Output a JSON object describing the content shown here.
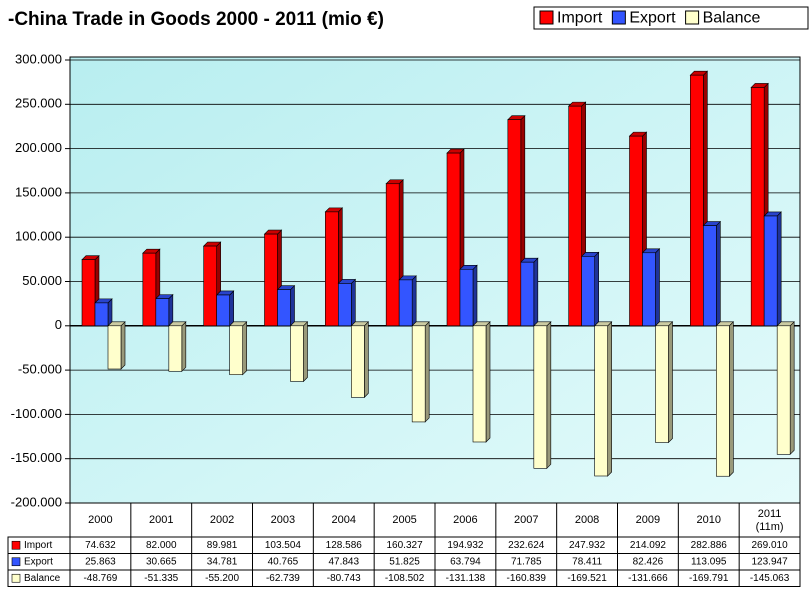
{
  "chart_data": {
    "type": "bar",
    "title": "-China Trade in Goods 2000 - 2011 (mio €)",
    "categories": [
      "2000",
      "2001",
      "2002",
      "2003",
      "2004",
      "2005",
      "2006",
      "2007",
      "2008",
      "2009",
      "2010",
      "2011 (11m)"
    ],
    "series": [
      {
        "name": "Import",
        "color": "#ff0000",
        "values": [
          74632,
          82000,
          89981,
          103504,
          128586,
          160327,
          194932,
          232624,
          247932,
          214092,
          282886,
          269010
        ],
        "value_labels": [
          "74.632",
          "82.000",
          "89.981",
          "103.504",
          "128.586",
          "160.327",
          "194.932",
          "232.624",
          "247.932",
          "214.092",
          "282.886",
          "269.010"
        ]
      },
      {
        "name": "Export",
        "color": "#3355ff",
        "values": [
          25863,
          30665,
          34781,
          40765,
          47843,
          51825,
          63794,
          71785,
          78411,
          82426,
          113095,
          123947
        ],
        "value_labels": [
          "25.863",
          "30.665",
          "34.781",
          "40.765",
          "47.843",
          "51.825",
          "63.794",
          "71.785",
          "78.411",
          "82.426",
          "113.095",
          "123.947"
        ]
      },
      {
        "name": "Balance",
        "color": "#ffffcc",
        "values": [
          -48769,
          -51335,
          -55200,
          -62739,
          -80743,
          -108502,
          -131138,
          -160839,
          -169521,
          -131666,
          -169791,
          -145063
        ],
        "value_labels": [
          "-48.769",
          "-51.335",
          "-55.200",
          "-62.739",
          "-80.743",
          "-108.502",
          "-131.138",
          "-160.839",
          "-169.521",
          "-131.666",
          "-169.791",
          "-145.063"
        ]
      }
    ],
    "ylim": [
      -200000,
      300000
    ],
    "yticks": [
      {
        "value": -200000,
        "label": "-200.000"
      },
      {
        "value": -150000,
        "label": "-150.000"
      },
      {
        "value": -100000,
        "label": "-100.000"
      },
      {
        "value": -50000,
        "label": "-50.000"
      },
      0,
      {
        "value": 50000,
        "label": "50.000"
      },
      {
        "value": 100000,
        "label": "100.000"
      },
      {
        "value": 150000,
        "label": "150.000"
      },
      {
        "value": 200000,
        "label": "200.000"
      },
      {
        "value": 250000,
        "label": "250.000"
      },
      {
        "value": 300000,
        "label": "300.000"
      }
    ],
    "grid": true,
    "legend": "top-right"
  }
}
